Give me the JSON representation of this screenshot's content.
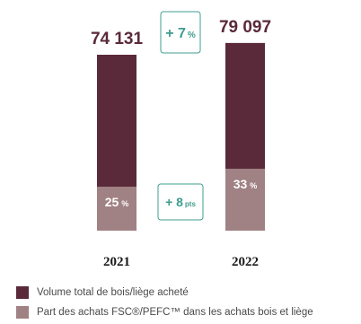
{
  "colors": {
    "total": "#5a2a3a",
    "share": "#a08184",
    "delta": "#3f9c8f",
    "text": "#5a2a3a",
    "axis": "#1a1a1a"
  },
  "chart_data": {
    "type": "bar",
    "categories": [
      "2021",
      "2022"
    ],
    "series": [
      {
        "name": "Volume total de bois/liège acheté",
        "values": [
          74131,
          79097
        ]
      },
      {
        "name": "Part des achats FSC®/PEFC™ dans les achats bois et liège",
        "values": [
          25,
          33
        ],
        "unit": "%"
      }
    ],
    "total_labels": [
      "74 131",
      "79 097"
    ],
    "share_labels": [
      {
        "num": "25",
        "unit": "%"
      },
      {
        "num": "33",
        "unit": "%"
      }
    ],
    "deltas": {
      "volume": {
        "num": "+ 7",
        "unit": "%"
      },
      "share": {
        "num": "+ 8",
        "unit": "pts"
      }
    },
    "legend_position": "bottom-left"
  }
}
